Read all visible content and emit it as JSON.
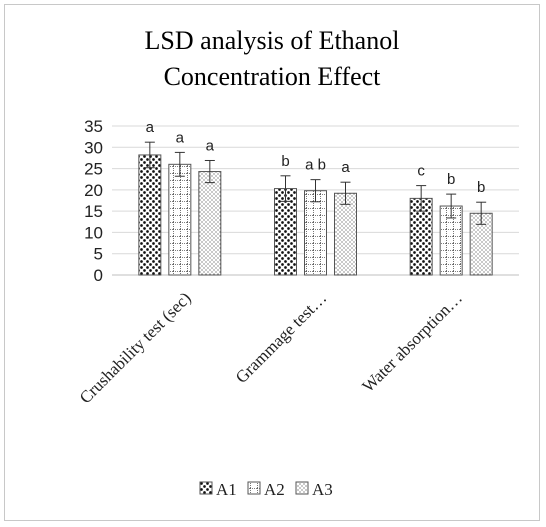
{
  "chart_data": {
    "type": "bar",
    "title_line1": "LSD analysis of Ethanol",
    "title_line2": "Concentration Effect",
    "categories": [
      "Crushability test (sec)",
      "Grammage test…",
      "Water absorption…"
    ],
    "series": [
      {
        "name": "A1",
        "values": [
          28.2,
          20.3,
          18.0
        ],
        "errors": [
          3.0,
          3.0,
          3.0
        ],
        "letters": [
          "a",
          "b",
          "c"
        ]
      },
      {
        "name": "A2",
        "values": [
          26.0,
          19.8,
          16.2
        ],
        "errors": [
          2.8,
          2.6,
          2.8
        ],
        "letters": [
          "a",
          "a b",
          "b"
        ]
      },
      {
        "name": "A3",
        "values": [
          24.3,
          19.2,
          14.5
        ],
        "errors": [
          2.6,
          2.6,
          2.6
        ],
        "letters": [
          "a",
          "a",
          "b"
        ]
      }
    ],
    "ylim": [
      0,
      35
    ],
    "yticks": [
      "0",
      "5",
      "10",
      "15",
      "20",
      "25",
      "30",
      "35"
    ],
    "grid": true,
    "legend_position": "bottom"
  }
}
